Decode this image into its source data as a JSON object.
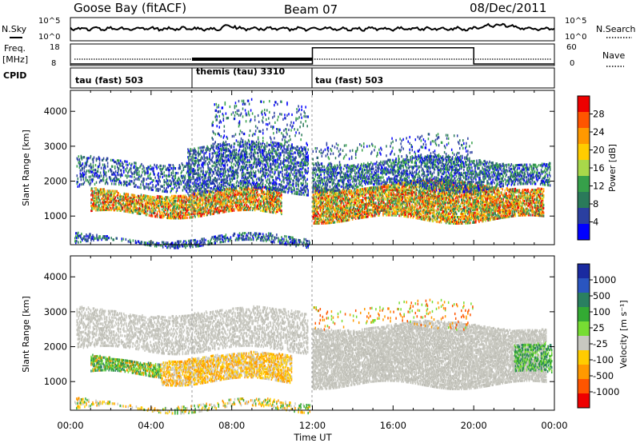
{
  "header": {
    "station": "Goose Bay (fitACF)",
    "beam": "Beam 07",
    "date": "08/Dec/2011"
  },
  "noise_panel": {
    "left_label": "N.Sky",
    "right_label": "N.Search",
    "left_ticks": [
      "10^5",
      "10^0"
    ],
    "right_ticks": [
      "10^5",
      "10^0"
    ]
  },
  "freq_panel": {
    "left_label_1": "Freq.",
    "left_label_2": "[MHz]",
    "right_label": "Nave",
    "left_ticks": [
      "18",
      "8"
    ],
    "right_ticks": [
      "60",
      "0"
    ],
    "nave_segments": [
      {
        "from_h": 0,
        "to_h": 12,
        "value": 0
      },
      {
        "from_h": 12,
        "to_h": 20,
        "value": 55
      },
      {
        "from_h": 20,
        "to_h": 24,
        "value": 0
      }
    ]
  },
  "cpid": {
    "label": "CPID",
    "segments": [
      {
        "from_h": 0,
        "to_h": 6,
        "text": "tau (fast) 503"
      },
      {
        "from_h": 6,
        "to_h": 12,
        "text": "themis (tau) 3310"
      },
      {
        "from_h": 12,
        "to_h": 24,
        "text": "tau (fast) 503"
      }
    ]
  },
  "chart_data": [
    {
      "type": "heatmap",
      "ylabel": "Slant Range [km]",
      "xlabel": "Time UT",
      "x_ticks": [
        "00:00",
        "04:00",
        "08:00",
        "12:00",
        "16:00",
        "20:00",
        "00:00"
      ],
      "y_ticks": [
        "1000",
        "2000",
        "3000",
        "4000"
      ],
      "xlim_hours": [
        0,
        24
      ],
      "ylim_km": [
        180,
        4600
      ],
      "colorbar": {
        "label": "Power [dB]",
        "ticks": [
          "28",
          "24",
          "20",
          "16",
          "12",
          "8",
          "4"
        ],
        "colors": [
          "#ee0000",
          "#ff5500",
          "#ff9900",
          "#ffcc00",
          "#a8d84a",
          "#36a04a",
          "#2a7a5a",
          "#2a3fa0",
          "#0000ff"
        ]
      }
    },
    {
      "type": "heatmap",
      "ylabel": "Slant Range [km]",
      "xlabel": "Time UT",
      "x_ticks": [
        "00:00",
        "04:00",
        "08:00",
        "12:00",
        "16:00",
        "20:00",
        "00:00"
      ],
      "y_ticks": [
        "1000",
        "2000",
        "3000",
        "4000"
      ],
      "xlim_hours": [
        0,
        24
      ],
      "ylim_km": [
        180,
        4600
      ],
      "colorbar": {
        "label": "Velocity [m s⁻¹]",
        "ticks": [
          "1000",
          "500",
          "100",
          "25",
          "-25",
          "-100",
          "-500",
          "-1000"
        ],
        "colors": [
          "#1a2aa0",
          "#2a55c0",
          "#2a8060",
          "#33aa33",
          "#77dd33",
          "#c8c8c0",
          "#ffcc00",
          "#ff9900",
          "#ff5500",
          "#ee0000"
        ]
      }
    }
  ]
}
